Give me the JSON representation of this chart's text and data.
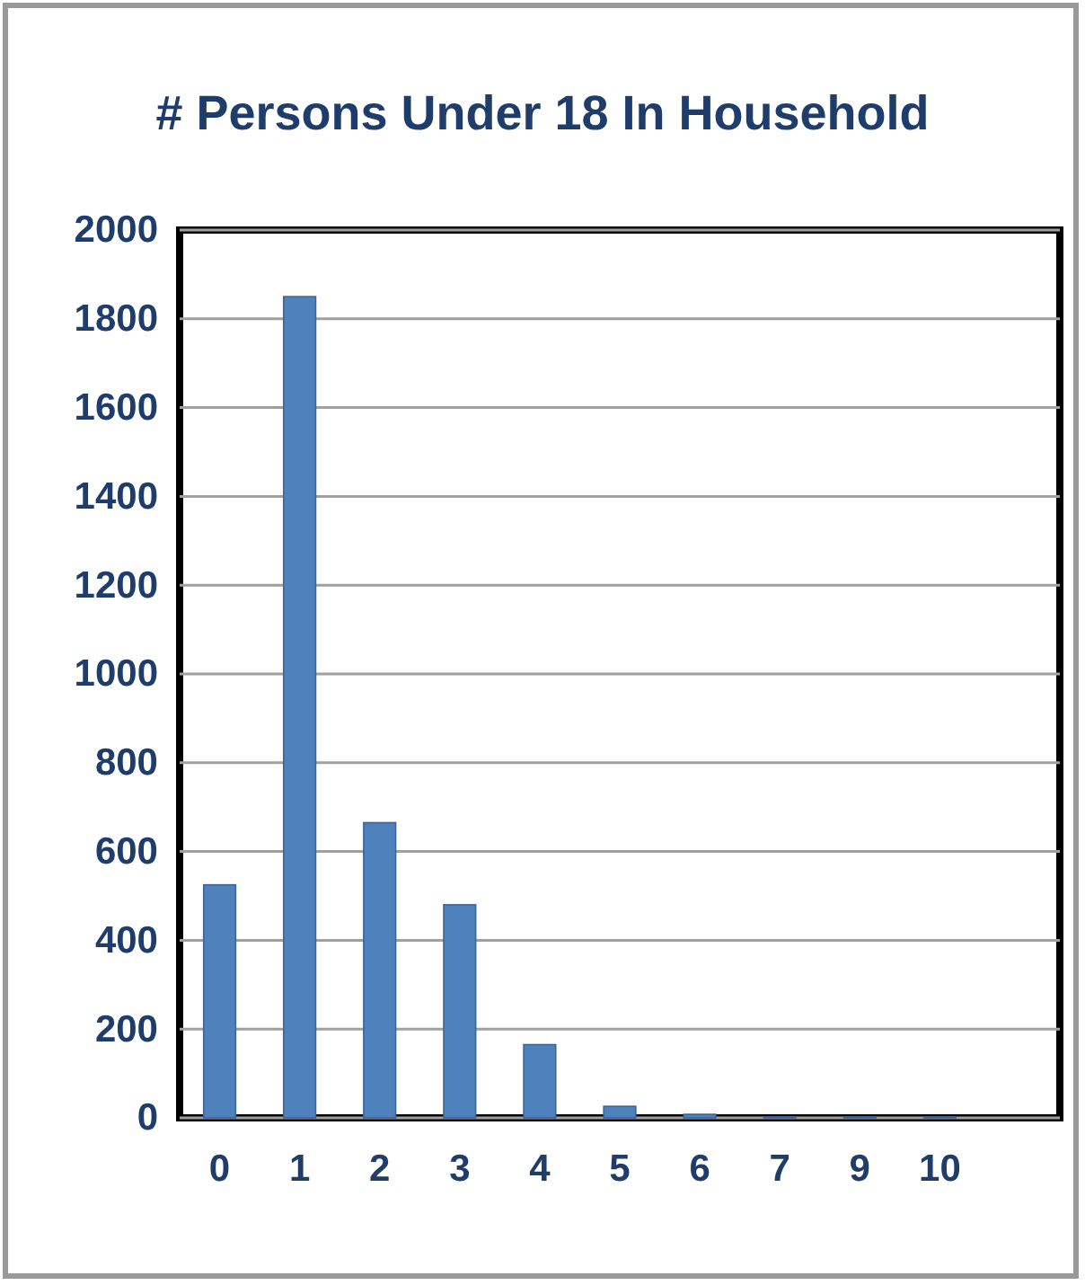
{
  "chart_data": {
    "type": "bar",
    "title": "# Persons Under 18 In Household",
    "categories": [
      "0",
      "1",
      "2",
      "3",
      "4",
      "5",
      "6",
      "7",
      "9",
      "10",
      null
    ],
    "values": [
      525,
      1850,
      665,
      480,
      165,
      26,
      8,
      2,
      2,
      2,
      null
    ],
    "color": "#4f81bd",
    "ylim": [
      0,
      2000
    ],
    "yticks": [
      0,
      200,
      400,
      600,
      800,
      1000,
      1200,
      1400,
      1600,
      1800,
      2000
    ],
    "grid": "y"
  }
}
